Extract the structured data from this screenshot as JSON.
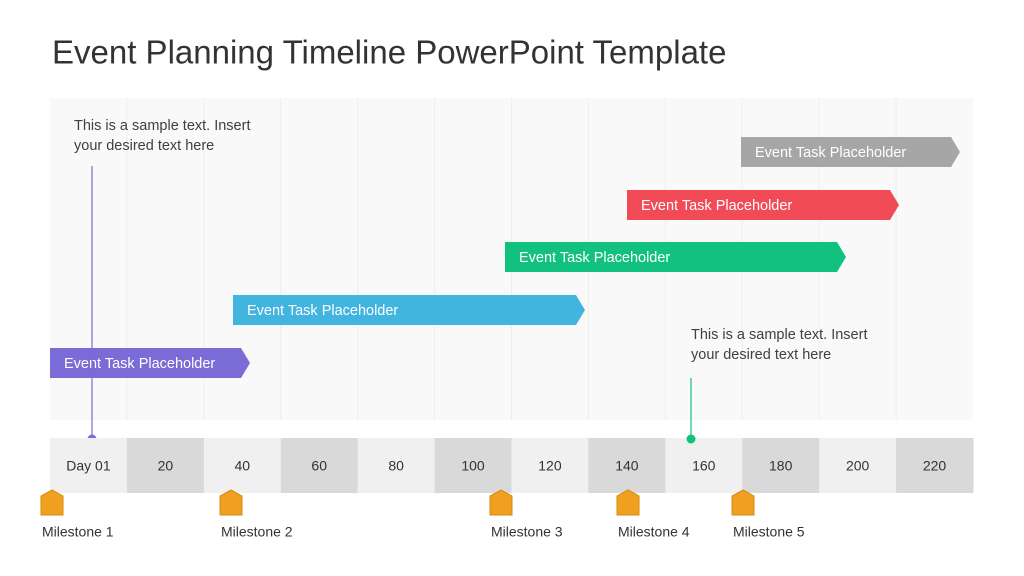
{
  "header": {
    "title": "Event Planning Timeline PowerPoint Template"
  },
  "notes": [
    {
      "lines": [
        "This is a sample text. Insert",
        "your desired text here"
      ]
    },
    {
      "lines": [
        "This is a sample text. Insert",
        "your desired text here"
      ]
    }
  ],
  "tasks": [
    {
      "label": "Event Task Placeholder"
    },
    {
      "label": "Event Task Placeholder"
    },
    {
      "label": "Event Task Placeholder"
    },
    {
      "label": "Event Task Placeholder"
    },
    {
      "label": "Event Task Placeholder"
    }
  ],
  "timeline": [
    "Day 01",
    "20",
    "40",
    "60",
    "80",
    "100",
    "120",
    "140",
    "160",
    "180",
    "200",
    "220"
  ],
  "milestones": [
    "Milestone 1",
    "Milestone 2",
    "Milestone 3",
    "Milestone 4",
    "Milestone 5"
  ]
}
